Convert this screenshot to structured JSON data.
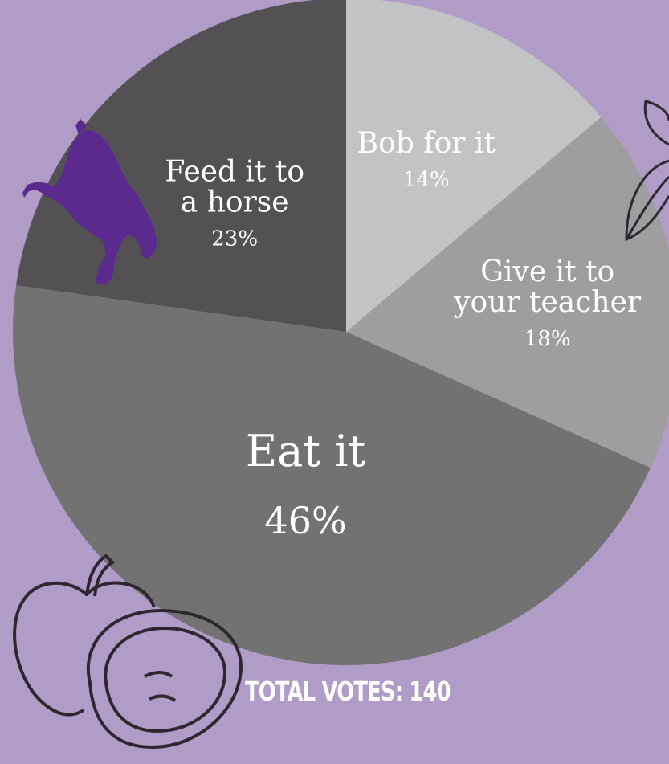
{
  "chart_data": {
    "type": "pie",
    "slices": [
      {
        "label_lines": [
          "Bob for it"
        ],
        "value": 14,
        "value_label": "14%",
        "color": "#c2c3c5"
      },
      {
        "label_lines": [
          "Give it to",
          "your teacher"
        ],
        "value": 18,
        "value_label": "18%",
        "color": "#9e9ea0"
      },
      {
        "label_lines": [
          "Eat it"
        ],
        "value": 46,
        "value_label": "46%",
        "color": "#737273"
      },
      {
        "label_lines": [
          "Feed it to",
          "a horse"
        ],
        "value": 23,
        "value_label": "23%",
        "color": "#545154"
      }
    ],
    "start_angle_deg": 0,
    "direction": "clockwise"
  },
  "footer": {
    "total_votes": "TOTAL VOTES: 140"
  },
  "colors": {
    "background": "#b19cc7",
    "text": "#ffffff",
    "horse": "#5a2a8e",
    "outline": "#2e2730"
  },
  "icons": {
    "decorations": [
      "horse-icon",
      "apple-icon",
      "leaf-icon"
    ]
  }
}
